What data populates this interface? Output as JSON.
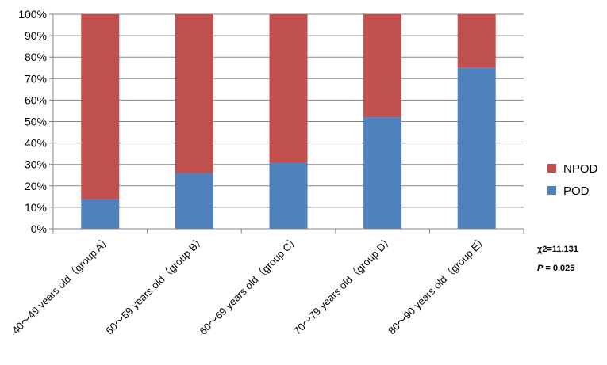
{
  "chart_data": {
    "type": "bar",
    "stacked": true,
    "categories": [
      "40～49 years old（group A）",
      "50～59 years old（group B）",
      "60～69 years old（group C）",
      "70～79 years old（group D）",
      "80～90 years old（group E）"
    ],
    "series": [
      {
        "name": "POD",
        "values": [
          14,
          26,
          31,
          52,
          75
        ],
        "color": "#4f81bd"
      },
      {
        "name": "NPOD",
        "values": [
          86,
          74,
          69,
          48,
          25
        ],
        "color": "#c0504d"
      }
    ],
    "legend_order": [
      "NPOD",
      "POD"
    ],
    "legend_position": "right",
    "ylim": [
      0,
      100
    ],
    "yticks": [
      "0%",
      "10%",
      "20%",
      "30%",
      "40%",
      "50%",
      "60%",
      "70%",
      "80%",
      "90%",
      "100%"
    ],
    "grid": true,
    "annotations": {
      "chi_square": "χ2=11.131",
      "p_label": "P",
      "p_value": " = 0.025"
    }
  }
}
